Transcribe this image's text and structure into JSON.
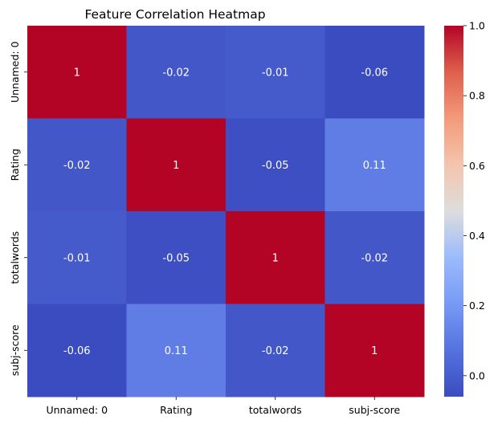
{
  "chart_data": {
    "type": "heatmap",
    "title": "Feature Correlation Heatmap",
    "x_labels": [
      "Unnamed: 0",
      "Rating",
      "totalwords",
      "subj-score"
    ],
    "y_labels": [
      "Unnamed: 0",
      "Rating",
      "totalwords",
      "subj-score"
    ],
    "values": [
      [
        1,
        -0.02,
        -0.01,
        -0.06
      ],
      [
        -0.02,
        1,
        -0.05,
        0.11
      ],
      [
        -0.01,
        -0.05,
        1,
        -0.02
      ],
      [
        -0.06,
        0.11,
        -0.02,
        1
      ]
    ],
    "annotations": [
      [
        "1",
        "-0.02",
        "-0.01",
        "-0.06"
      ],
      [
        "-0.02",
        "1",
        "-0.05",
        "0.11"
      ],
      [
        "-0.01",
        "-0.05",
        "1",
        "-0.02"
      ],
      [
        "-0.06",
        "0.11",
        "-0.02",
        "1"
      ]
    ],
    "colormap": "coolwarm",
    "colorbar": {
      "range": [
        -0.06,
        1.0
      ],
      "ticks": [
        0.0,
        0.2,
        0.4,
        0.6,
        0.8,
        1.0
      ],
      "tick_labels": [
        "0.0",
        "0.2",
        "0.4",
        "0.6",
        "0.8",
        "1.0"
      ]
    }
  }
}
